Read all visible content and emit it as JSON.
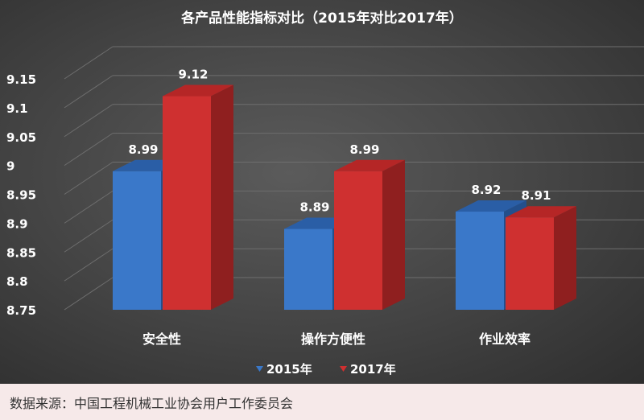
{
  "chart_data": {
    "type": "bar",
    "title": "各产品性能指标对比（2015年对比2017年）",
    "categories": [
      "安全性",
      "操作方便性",
      "作业效率"
    ],
    "series": [
      {
        "name": "2015年",
        "values": [
          8.99,
          8.89,
          8.92
        ]
      },
      {
        "name": "2017年",
        "values": [
          9.12,
          8.99,
          8.91
        ]
      }
    ],
    "ylim": [
      8.75,
      9.15
    ],
    "yticks": [
      "8.75",
      "8.8",
      "8.85",
      "8.9",
      "8.95",
      "9",
      "9.05",
      "9.1",
      "9.15"
    ],
    "grid": true,
    "legend_position": "bottom",
    "data_labels": true
  },
  "colors": {
    "series": [
      "#3a78c9",
      "#cf3030"
    ],
    "series_side": [
      "#234f8c",
      "#8f1f1f"
    ],
    "series_top": [
      "#2a5ea6",
      "#b52626"
    ],
    "text": "#ffffff",
    "gridline": "#6e6e6e"
  },
  "source": {
    "text": "数据来源：中国工程机械工业协会用户工作委员会"
  }
}
